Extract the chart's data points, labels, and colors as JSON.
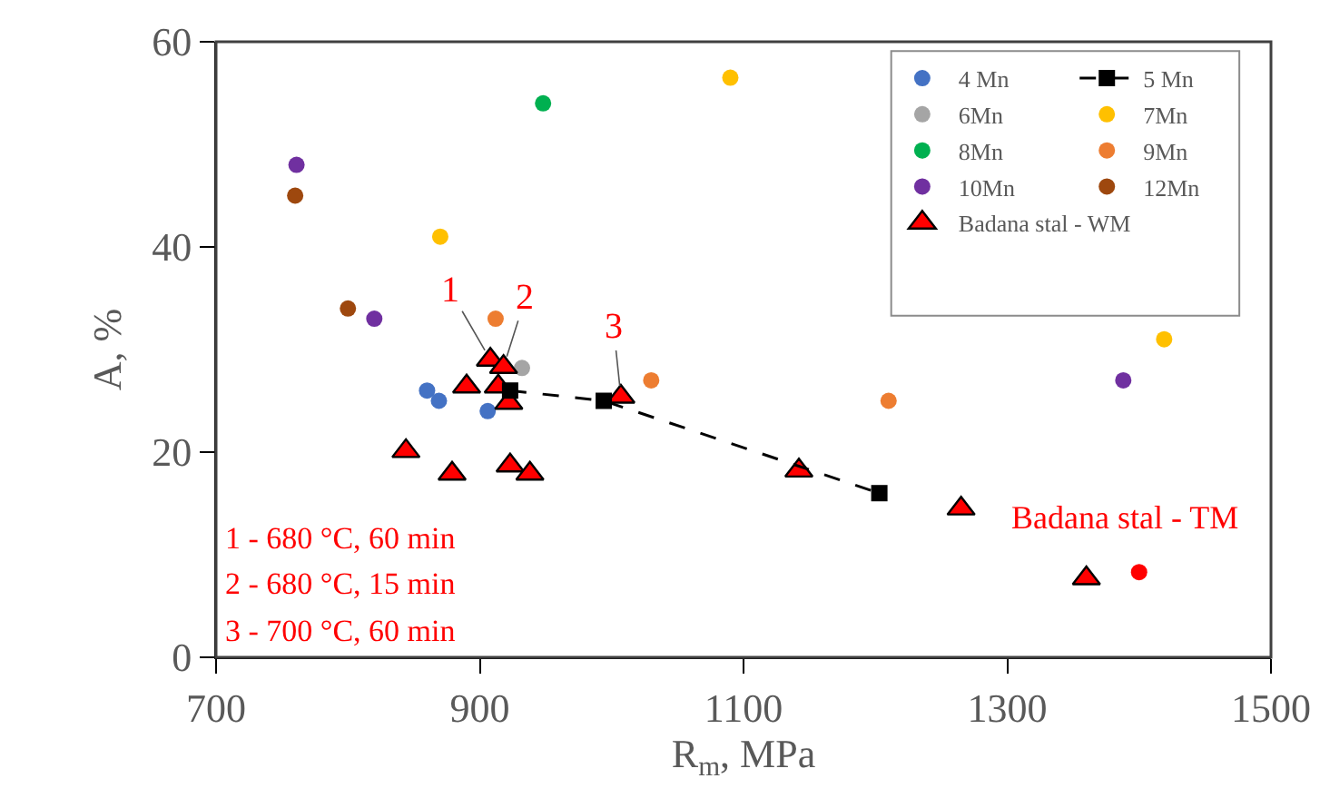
{
  "chart_data": {
    "type": "scatter",
    "xlabel": "R$_{m}$, MPa",
    "ylabel": "A, %",
    "xlim": [
      700,
      1500
    ],
    "xticks": [
      700,
      900,
      1100,
      1300,
      1500
    ],
    "ylim": [
      0,
      60
    ],
    "yticks": [
      0,
      20,
      40,
      60
    ],
    "grid": false,
    "legend": "top right",
    "marker": "circle",
    "series": [
      {
        "name": "4 Mn",
        "color": "#4472c4",
        "x": [
          860,
          869,
          906
        ],
        "values": [
          26,
          25,
          24
        ]
      },
      {
        "name": "5 Mn",
        "type": "line",
        "line_style": "dashed",
        "marker": "square",
        "color": "#000000",
        "x": [
          923,
          994,
          1203
        ],
        "values": [
          26,
          25,
          16
        ]
      },
      {
        "name": "6Mn",
        "color": "#a5a5a5",
        "x": [
          932
        ],
        "values": [
          28.2
        ]
      },
      {
        "name": "7Mn",
        "color": "#ffc000",
        "x": [
          1090,
          870,
          1419
        ],
        "values": [
          56.5,
          41,
          31
        ]
      },
      {
        "name": "8Mn",
        "color": "#00b050",
        "x": [
          948
        ],
        "values": [
          54
        ]
      },
      {
        "name": "9Mn",
        "color": "#ed7d31",
        "x": [
          912,
          1030,
          1210
        ],
        "values": [
          33,
          27,
          25
        ]
      },
      {
        "name": "10Mn",
        "color": "#7030a0",
        "x": [
          761,
          820,
          1388
        ],
        "values": [
          48,
          33,
          27
        ]
      },
      {
        "name": "12Mn",
        "color": "#9e480e",
        "x": [
          760,
          800
        ],
        "values": [
          45,
          34
        ]
      },
      {
        "name": "Badana stal - WM",
        "marker": "triangle",
        "color": "#ff0000",
        "x": [
          908,
          918,
          890,
          914,
          922,
          1007,
          844,
          879,
          923,
          938,
          1142,
          1265,
          1360
        ],
        "values": [
          29,
          28.3,
          26.4,
          26.4,
          24.8,
          25.4,
          20.1,
          17.9,
          18.7,
          17.9,
          18.2,
          14.5,
          7.7
        ]
      },
      {
        "color": "#ff0000",
        "x": [
          1400
        ],
        "values": [
          8.3
        ]
      }
    ],
    "annotations": [
      {
        "text": "1",
        "x": 908,
        "y": 29
      },
      {
        "text": "2",
        "x": 918,
        "y": 28.3
      },
      {
        "text": "3",
        "x": 1007,
        "y": 25.4
      },
      {
        "text": "Badana stal - TM",
        "x": 1400,
        "y": 8.3
      },
      "1 - 680 °C, 60 min",
      "2 - 680 °C, 15 min",
      "3 - 700 °C, 60 min"
    ]
  }
}
